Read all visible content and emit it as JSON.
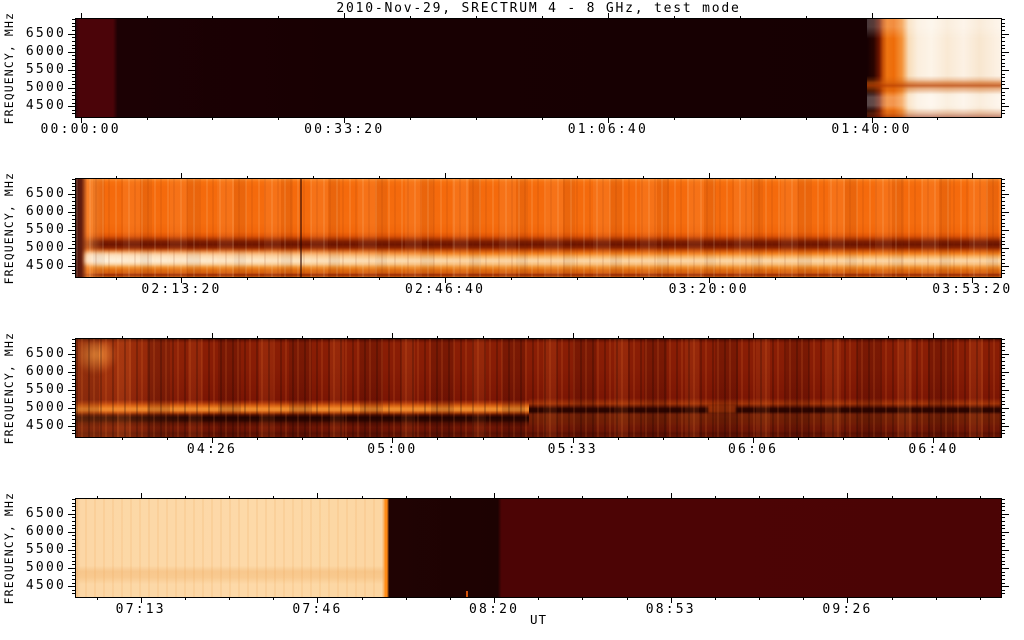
{
  "title": "2010-Nov-29,  SRECTRUM 4 - 8 GHz,  test mode",
  "axis": {
    "ylabel": "FREQUENCY, MHz",
    "xlabel": "UT"
  },
  "colors": {
    "background": "#ffffff",
    "axis_and_text": "#000000",
    "panel1_black": "#180002",
    "panel1_maroon_strip": "#4b0409",
    "panel1_burst_orange_edge": "#ef7511",
    "panel1_burst_cream": "#fbeedd",
    "panel2_orange": "#f56a0c",
    "panel2_dark_band": "#6d1500",
    "panel2_bright_band": "#fbd4a2",
    "panel3_dark_red": "#871c05",
    "panel3_bright_band": "#ef8c2c",
    "panel3_black_band": "#230400",
    "panel4_cream": "#fdd9a8",
    "panel4_black": "#1d0202",
    "panel4_maroon": "#4b0405"
  },
  "chart_data": {
    "type": "heatmap",
    "title": "2010-Nov-29,  SRECTRUM 4 - 8 GHz,  test mode",
    "xlabel": "UT",
    "ylabel": "FREQUENCY, MHz",
    "grid": false,
    "legend": "none",
    "y_axis": {
      "unit": "MHz",
      "major_ticks": [
        6500,
        6000,
        5500,
        5000,
        4500
      ],
      "minor_step": 100,
      "range": [
        4300,
        6900
      ],
      "frac_at_4500": 89,
      "frac_per_500": 18.5
    },
    "panels": [
      {
        "name": "spectrogram-panel-1",
        "x_tick_labels": [
          "00:00:00",
          "00:33:20",
          "01:06:40",
          "01:40:00"
        ],
        "x_tick_fracs": [
          0.5,
          29.0,
          57.5,
          86.0
        ],
        "features": "No signal (near-black) for most of the interval; dark maroon strip at far left; strong broadband emission begins near 01:43 with an orange leading edge brightening to cream-white and an enhanced horizontal band near 5000 MHz"
      },
      {
        "name": "spectrogram-panel-2",
        "x_tick_labels": [
          "02:13:20",
          "02:46:40",
          "03:20:00",
          "03:53:20"
        ],
        "x_tick_fracs": [
          11.4,
          39.9,
          68.4,
          96.9
        ],
        "features": "Continuous bright orange 4-8 GHz emission with fine vertical striping; dark absorption band near 5100-5300 MHz; bright band near 4600-4900 MHz, whitest before ~02:40; darker strip at the lowest frequencies; dark vertical line near 02:30"
      },
      {
        "name": "spectrogram-panel-3",
        "x_tick_labels": [
          "04:26",
          "05:00",
          "05:33",
          "06:06",
          "06:40"
        ],
        "x_tick_fracs": [
          14.7,
          34.2,
          53.7,
          73.2,
          92.7
        ],
        "features": "Weaker dark-red emission with strong vertical striping; bright orange patch at top left near 04:05; narrow bright band near 5000 MHz until ~05:25, replaced afterwards by a dark band with a short gap near 06:05; black band near 4700-4900 MHz on the left half"
      },
      {
        "name": "spectrogram-panel-4",
        "x_tick_labels": [
          "07:13",
          "07:46",
          "08:20",
          "08:53",
          "09:26"
        ],
        "x_tick_fracs": [
          7.0,
          26.1,
          45.2,
          64.3,
          83.4
        ],
        "features": "Saturated cream-colored emission until ~08:00 with a faint band near 4800 MHz; abrupt transition (thin orange edge) to black until ~08:22; uniform dark maroon afterwards"
      }
    ]
  }
}
